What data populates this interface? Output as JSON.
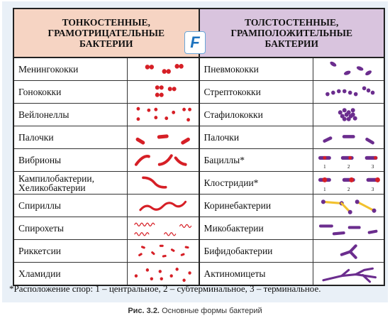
{
  "header": {
    "left": [
      "ТОНКОСТЕННЫЕ,",
      "ГРАМОТРИЦАТЕЛЬНЫЕ",
      "БАКТЕРИИ"
    ],
    "right": [
      "ТОЛСТОСТЕННЫЕ,",
      "ГРАМПОЛОЖИТЕЛЬНЫЕ",
      "БАКТЕРИИ"
    ]
  },
  "logo": "F",
  "left_rows": [
    {
      "name": "Менингококки"
    },
    {
      "name": "Гонококки"
    },
    {
      "name": "Вейлонеллы"
    },
    {
      "name": "Палочки"
    },
    {
      "name": "Вибрионы"
    },
    {
      "name": "Кампилобактерии, Хеликобактерии"
    },
    {
      "name": "Спириллы"
    },
    {
      "name": "Спирохеты"
    },
    {
      "name": "Риккетсии"
    },
    {
      "name": "Хламидии"
    }
  ],
  "right_rows": [
    {
      "name": "Пневмококки"
    },
    {
      "name": "Стрептококки"
    },
    {
      "name": "Стафилококки"
    },
    {
      "name": "Палочки"
    },
    {
      "name": "Бациллы*"
    },
    {
      "name": "Клостридии*"
    },
    {
      "name": "Коринебактерии"
    },
    {
      "name": "Микобактерии"
    },
    {
      "name": "Бифидобактерии"
    },
    {
      "name": "Актиномицеты"
    }
  ],
  "spore_labels": [
    "1",
    "2",
    "3"
  ],
  "footnote": "*Расположение спор: 1 – центральное, 2 – субтерминальное, 3 – терминальное.",
  "caption": {
    "label": "Рис. 3.2.",
    "text": "Основные формы бактерий"
  },
  "colors": {
    "gram_negative": "#d61f26",
    "gram_positive": "#6b2d8e",
    "spore": "#d61f26",
    "coryne_band": "#f2c12e"
  }
}
